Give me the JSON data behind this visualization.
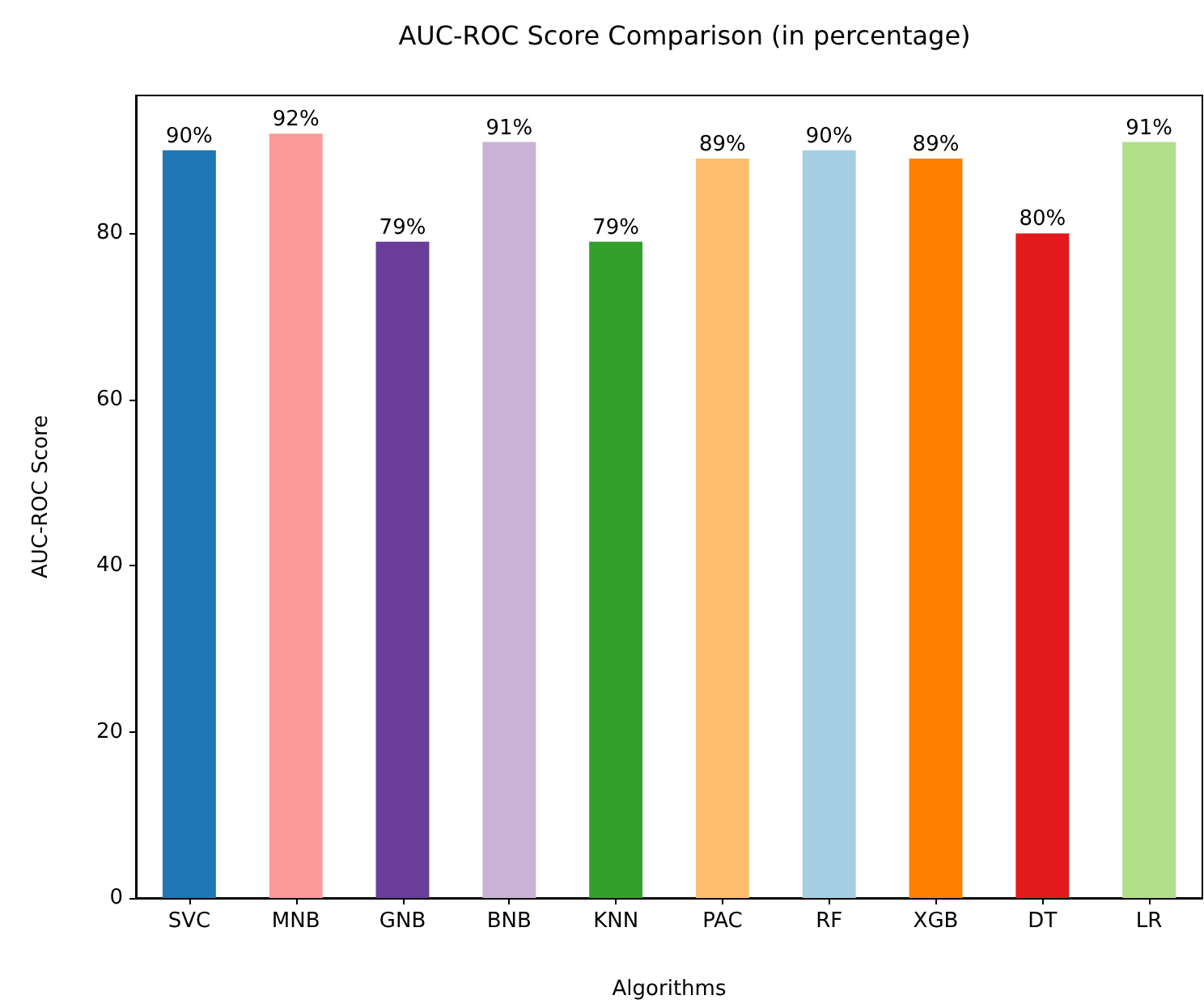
{
  "chart_data": {
    "type": "bar",
    "title": "AUC-ROC Score Comparison (in percentage)",
    "xlabel": "Algorithms",
    "ylabel": "AUC-ROC Score",
    "categories": [
      "SVC",
      "MNB",
      "GNB",
      "BNB",
      "KNN",
      "PAC",
      "RF",
      "XGB",
      "DT",
      "LR"
    ],
    "values": [
      90,
      92,
      79,
      91,
      79,
      89,
      90,
      89,
      80,
      91
    ],
    "colors": [
      "#1f77b4",
      "#fb9a99",
      "#6a3d9a",
      "#cab2d6",
      "#33a02c",
      "#fdbf6f",
      "#a6cee3",
      "#ff7f00",
      "#e31a1c",
      "#b2df8a"
    ],
    "value_labels": [
      "90%",
      "92%",
      "79%",
      "91%",
      "79%",
      "89%",
      "90%",
      "89%",
      "80%",
      "91%"
    ],
    "ylim": [
      0,
      96.6
    ],
    "yticks": [
      0,
      20,
      40,
      60,
      80
    ],
    "grid": false
  }
}
